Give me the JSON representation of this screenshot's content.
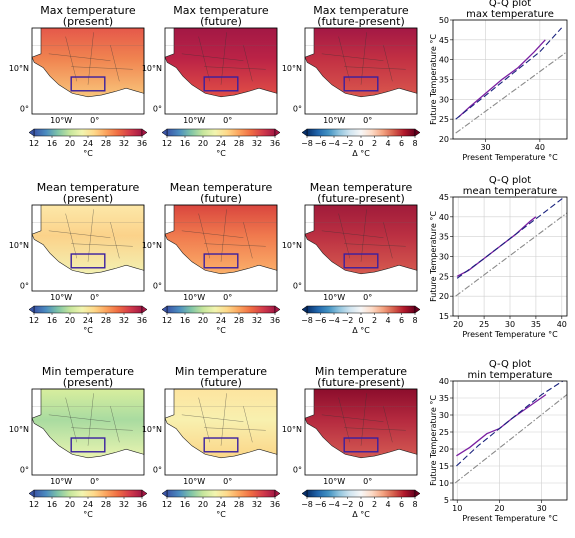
{
  "rows": [
    {
      "maps": [
        {
          "title1": "Max temperature",
          "title2": "(present)",
          "cb": "abs"
        },
        {
          "title1": "Max temperature",
          "title2": "(future)",
          "cb": "abs"
        },
        {
          "title1": "Max temperature",
          "title2": "(future-present)",
          "cb": "delta"
        }
      ],
      "qq": {
        "title1": "Q-Q plot",
        "title2": "max temperature",
        "xlabel": "Present Temperature °C",
        "ylabel": "Future Temperature °C",
        "xlim": [
          24,
          45
        ],
        "ylim": [
          20,
          50
        ],
        "xticks": [
          "30",
          "40"
        ],
        "yticks": [
          "20",
          "25",
          "30",
          "35",
          "40",
          "45",
          "50"
        ]
      }
    },
    {
      "maps": [
        {
          "title1": "Mean temperature",
          "title2": "(present)",
          "cb": "abs"
        },
        {
          "title1": "Mean temperature",
          "title2": "(future)",
          "cb": "abs"
        },
        {
          "title1": "Mean temperature",
          "title2": "(future-present)",
          "cb": "delta"
        }
      ],
      "qq": {
        "title1": "Q-Q plot",
        "title2": "mean temperature",
        "xlabel": "Present Temperature °C",
        "ylabel": "Future Temperature °C",
        "xlim": [
          19,
          41
        ],
        "ylim": [
          15,
          45
        ],
        "xticks": [
          "20",
          "25",
          "30",
          "35",
          "40"
        ],
        "yticks": [
          "15",
          "20",
          "25",
          "30",
          "35",
          "40",
          "45"
        ]
      }
    },
    {
      "maps": [
        {
          "title1": "Min temperature",
          "title2": "(present)",
          "cb": "abs"
        },
        {
          "title1": "Min temperature",
          "title2": "(future)",
          "cb": "abs"
        },
        {
          "title1": "Min temperature",
          "title2": "(future-present)",
          "cb": "delta"
        }
      ],
      "qq": {
        "title1": "Q-Q plot",
        "title2": "min temperature",
        "xlabel": "Present Temperature °C",
        "ylabel": "Future Temperature °C",
        "xlim": [
          9,
          36
        ],
        "ylim": [
          5,
          40
        ],
        "xticks": [
          "10",
          "20",
          "30"
        ],
        "yticks": [
          "5",
          "10",
          "15",
          "20",
          "25",
          "30",
          "35",
          "40"
        ]
      }
    }
  ],
  "map_ticks": {
    "lat": [
      "0°",
      "10°N"
    ],
    "lon": [
      "10°W",
      "0°"
    ]
  },
  "colorbars": {
    "abs": {
      "ticks": [
        "12",
        "16",
        "20",
        "24",
        "28",
        "32",
        "36"
      ],
      "label": "°C",
      "colors": [
        "#3b55a6",
        "#4b8cc0",
        "#7fc4a7",
        "#c6e69c",
        "#f2f5b0",
        "#fed98a",
        "#fca45e",
        "#ef6c43",
        "#d33b4b",
        "#a31845"
      ]
    },
    "delta": {
      "ticks": [
        "−8",
        "−6",
        "−4",
        "−2",
        "0",
        "2",
        "4",
        "6",
        "8"
      ],
      "label": "Δ °C",
      "colors": [
        "#08306b",
        "#2166ac",
        "#4393c3",
        "#92c5de",
        "#d1e5f0",
        "#f7f7f7",
        "#fddbc7",
        "#f4a582",
        "#d6604d",
        "#b2182b",
        "#67001f"
      ]
    }
  },
  "chart_data": [
    {
      "type": "line",
      "title": "Q-Q plot max temperature",
      "xlabel": "Present Temperature °C",
      "ylabel": "Future Temperature °C",
      "xlim": [
        24,
        45
      ],
      "ylim": [
        20,
        50
      ],
      "series": [
        {
          "color": "#7b1fa2",
          "style": "solid",
          "x": [
            25,
            27,
            30,
            33,
            36,
            39,
            41
          ],
          "y": [
            25.5,
            28,
            31.5,
            35,
            38,
            42,
            45
          ]
        },
        {
          "color": "#1a237e",
          "style": "dashed",
          "x": [
            24.5,
            30,
            35,
            40,
            44
          ],
          "y": [
            25,
            31,
            36.5,
            42,
            48
          ]
        },
        {
          "color": "#8a8a8a",
          "style": "dashdot",
          "x": [
            24.5,
            45
          ],
          "y": [
            21.5,
            42
          ]
        }
      ]
    },
    {
      "type": "line",
      "title": "Q-Q plot mean temperature",
      "xlabel": "Present Temperature °C",
      "ylabel": "Future Temperature °C",
      "xlim": [
        19,
        41
      ],
      "ylim": [
        15,
        45
      ],
      "series": [
        {
          "color": "#7b1fa2",
          "style": "solid",
          "x": [
            19.8,
            22,
            25,
            28,
            31,
            34,
            35
          ],
          "y": [
            25,
            26.5,
            29.5,
            32.5,
            35.5,
            39,
            40
          ]
        },
        {
          "color": "#1a237e",
          "style": "dashed",
          "x": [
            19.8,
            25,
            30,
            35,
            40.5
          ],
          "y": [
            24.5,
            29.5,
            34.5,
            39.5,
            45
          ]
        },
        {
          "color": "#8a8a8a",
          "style": "dashdot",
          "x": [
            19.5,
            41
          ],
          "y": [
            20,
            41
          ]
        }
      ]
    },
    {
      "type": "line",
      "title": "Q-Q plot min temperature",
      "xlabel": "Present Temperature °C",
      "ylabel": "Future Temperature °C",
      "xlim": [
        9,
        36
      ],
      "ylim": [
        5,
        40
      ],
      "series": [
        {
          "color": "#7b1fa2",
          "style": "solid",
          "x": [
            9.8,
            13,
            17,
            20,
            23,
            27,
            31
          ],
          "y": [
            18,
            20.5,
            24.5,
            26,
            29,
            32.5,
            36
          ]
        },
        {
          "color": "#1a237e",
          "style": "dashed",
          "x": [
            9.8,
            15,
            20,
            25,
            30,
            35
          ],
          "y": [
            15,
            21,
            26,
            31,
            36,
            40
          ]
        },
        {
          "color": "#8a8a8a",
          "style": "dashdot",
          "x": [
            9.5,
            36
          ],
          "y": [
            10,
            36
          ]
        }
      ]
    }
  ]
}
